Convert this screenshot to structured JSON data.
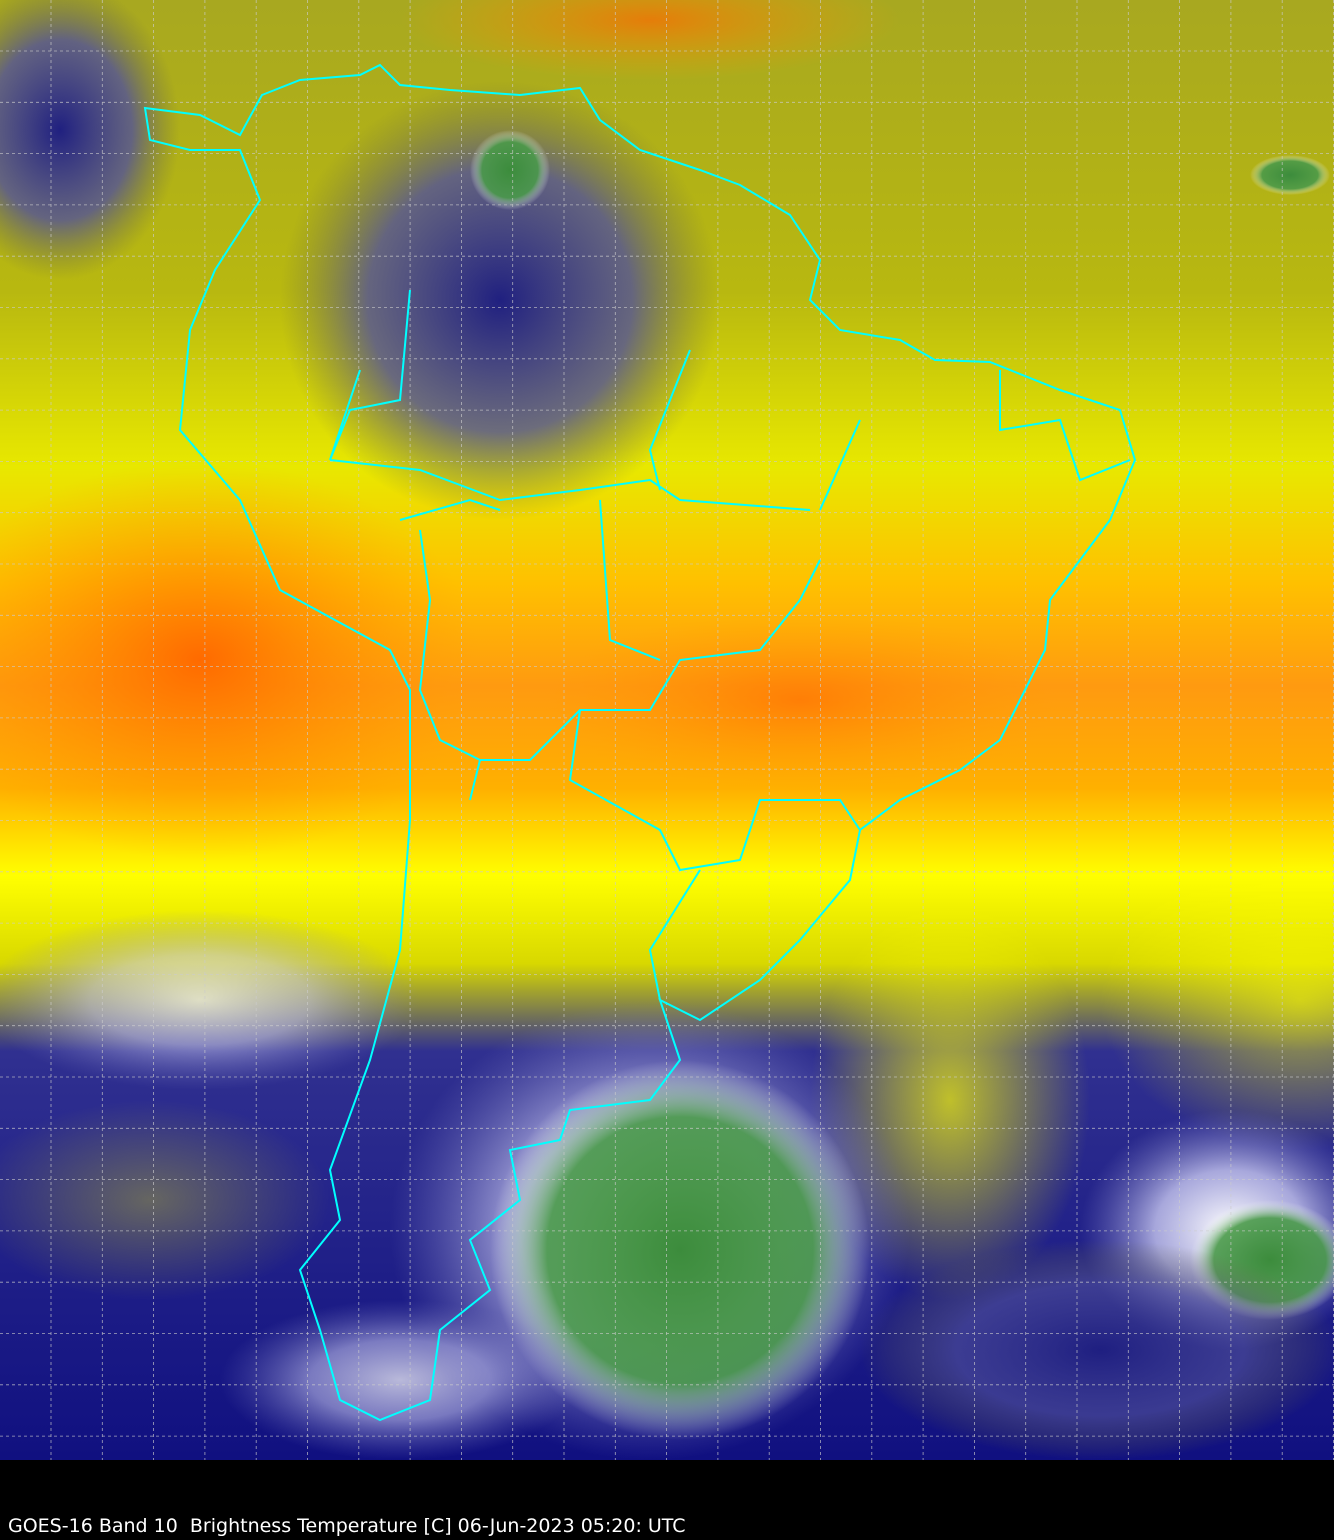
{
  "caption": "GOES-16 Band 10  Brightness Temperature [C] 06-Jun-2023 05:20: UTC",
  "map": {
    "satellite": "GOES-16",
    "border_color": "#00ffff",
    "grid_color": "#cccccc",
    "colormap": [
      "#000080",
      "#ffffff",
      "#3c8c3c",
      "#b4b400",
      "#ffff00",
      "#ff9600",
      "#ff5000"
    ]
  }
}
